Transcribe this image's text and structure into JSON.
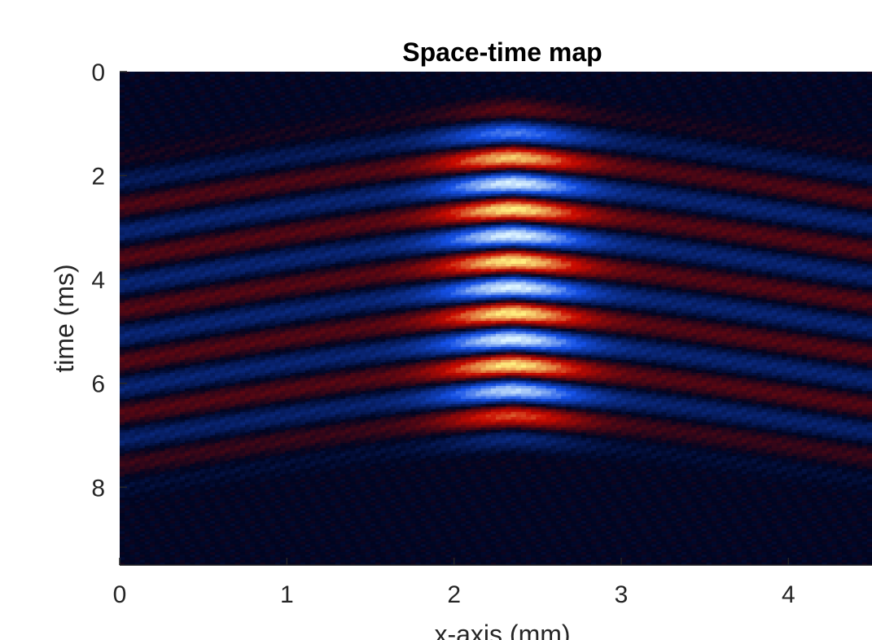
{
  "chart_data": {
    "type": "heatmap",
    "title": "Space-time map",
    "xlabel": "x-axis (mm)",
    "ylabel": "time (ms)",
    "xlim": [
      0,
      4.5
    ],
    "ylim": [
      0,
      9.5
    ],
    "y_reversed": true,
    "x_ticks": [
      "0",
      "1",
      "2",
      "3",
      "4"
    ],
    "y_ticks": [
      "0",
      "2",
      "4",
      "6",
      "8"
    ],
    "x_tick_values": [
      0,
      1,
      2,
      3,
      4
    ],
    "y_tick_values": [
      0,
      2,
      4,
      6,
      8
    ],
    "colormap": {
      "negative_peak": "#dcf4ff",
      "negative_mid": "#1450e6",
      "zero": "#000520",
      "positive_mid": "#c80a00",
      "positive_peak": "#fff080"
    },
    "wavefront": {
      "apex_x": 2.35,
      "apex_time": 1.65,
      "crests": [
        {
          "sign": "positive",
          "time_at_apex": 1.65
        },
        {
          "sign": "negative",
          "time_at_apex": 2.15
        },
        {
          "sign": "positive",
          "time_at_apex": 2.65
        },
        {
          "sign": "negative",
          "time_at_apex": 3.15
        },
        {
          "sign": "positive",
          "time_at_apex": 3.65
        },
        {
          "sign": "negative",
          "time_at_apex": 4.15
        },
        {
          "sign": "positive",
          "time_at_apex": 4.65
        },
        {
          "sign": "negative",
          "time_at_apex": 5.15
        },
        {
          "sign": "positive",
          "time_at_apex": 5.65
        },
        {
          "sign": "negative",
          "time_at_apex": 6.15
        }
      ],
      "time_at_left_edge_first_crest": 2.6,
      "time_at_right_edge_first_crest": 2.45
    },
    "grid": false
  }
}
